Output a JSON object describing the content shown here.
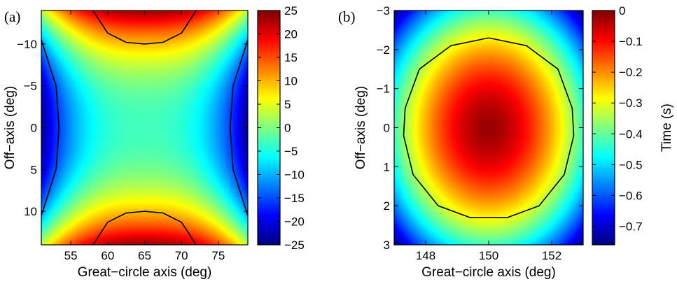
{
  "chart_data": [
    {
      "panel": "(a)",
      "type": "heatmap",
      "xlabel": "Great−circle axis (deg)",
      "ylabel": "Off−axis (deg)",
      "xlim": [
        51,
        79
      ],
      "ylim": [
        -14,
        14
      ],
      "y_reversed": true,
      "xticks": [
        55,
        60,
        65,
        70,
        75
      ],
      "yticks": [
        -10,
        -5,
        0,
        5,
        10
      ],
      "yticklabels": [
        "−10",
        "−5",
        "0",
        "5",
        "10"
      ],
      "colorbar": {
        "label": "",
        "range": [
          -25,
          25
        ],
        "ticks": [
          25,
          20,
          15,
          10,
          5,
          0,
          -5,
          -10,
          -15,
          -20,
          -25
        ],
        "ticklabels": [
          "25",
          "20",
          "15",
          "10",
          "5",
          "0",
          "−5",
          "−10",
          "−15",
          "−20",
          "−25"
        ]
      },
      "field": {
        "form": "saddle",
        "center": [
          65,
          0
        ],
        "value_at_corners": {
          "top_center": 24,
          "bottom_center": 24,
          "left_middle": -24,
          "right_middle": -24,
          "center": -3
        }
      },
      "contours": [
        {
          "level": 10,
          "points": [
            [
              58,
              -14
            ],
            [
              60,
              -11.3
            ],
            [
              62.5,
              -10.2
            ],
            [
              65,
              -10
            ],
            [
              67.5,
              -10.2
            ],
            [
              70,
              -11.3
            ],
            [
              72,
              -14
            ]
          ]
        },
        {
          "level": 10,
          "points": [
            [
              58,
              14
            ],
            [
              60,
              11.3
            ],
            [
              62.5,
              10.2
            ],
            [
              65,
              10
            ],
            [
              67.5,
              10.2
            ],
            [
              70,
              11.3
            ],
            [
              72,
              14
            ]
          ]
        },
        {
          "level": -15,
          "points": [
            [
              51,
              -10.5
            ],
            [
              53,
              -5
            ],
            [
              53.4,
              0
            ],
            [
              53,
              5
            ],
            [
              51,
              10.5
            ]
          ]
        },
        {
          "level": -15,
          "points": [
            [
              79,
              -10.5
            ],
            [
              77,
              -5
            ],
            [
              76.6,
              0
            ],
            [
              77,
              5
            ],
            [
              79,
              10.5
            ]
          ]
        }
      ]
    },
    {
      "panel": "(b)",
      "type": "heatmap",
      "xlabel": "Great−circle axis (deg)",
      "ylabel": "Off−axis (deg)",
      "xlim": [
        147,
        153
      ],
      "ylim": [
        -3,
        3
      ],
      "y_reversed": true,
      "xticks": [
        148,
        150,
        152
      ],
      "yticks": [
        -3,
        -2,
        -1,
        0,
        1,
        2,
        3
      ],
      "yticklabels": [
        "−3",
        "−2",
        "−1",
        "0",
        "1",
        "2",
        "3"
      ],
      "colorbar": {
        "label": "Time (s)",
        "range": [
          -0.76,
          0
        ],
        "ticks": [
          0,
          -0.1,
          -0.2,
          -0.3,
          -0.4,
          -0.5,
          -0.6,
          -0.7
        ],
        "ticklabels": [
          "0",
          "−0.1",
          "−0.2",
          "−0.3",
          "−0.4",
          "−0.5",
          "−0.6",
          "−0.7"
        ]
      },
      "field": {
        "form": "paraboloid",
        "center": [
          150,
          0
        ],
        "value_at_center": -0.02,
        "value_at_corners": -0.76
      },
      "contours": [
        {
          "level": -0.3,
          "points": [
            [
              150,
              -2.3
            ],
            [
              151.2,
              -2.1
            ],
            [
              152.2,
              -1.5
            ],
            [
              152.65,
              -0.5
            ],
            [
              152.7,
              0.2
            ],
            [
              152.4,
              1.2
            ],
            [
              151.6,
              2.0
            ],
            [
              150.6,
              2.3
            ],
            [
              149.4,
              2.3
            ],
            [
              148.4,
              2.0
            ],
            [
              147.6,
              1.2
            ],
            [
              147.3,
              0.2
            ],
            [
              147.35,
              -0.5
            ],
            [
              147.8,
              -1.5
            ],
            [
              148.8,
              -2.1
            ],
            [
              150,
              -2.3
            ]
          ]
        }
      ]
    }
  ]
}
